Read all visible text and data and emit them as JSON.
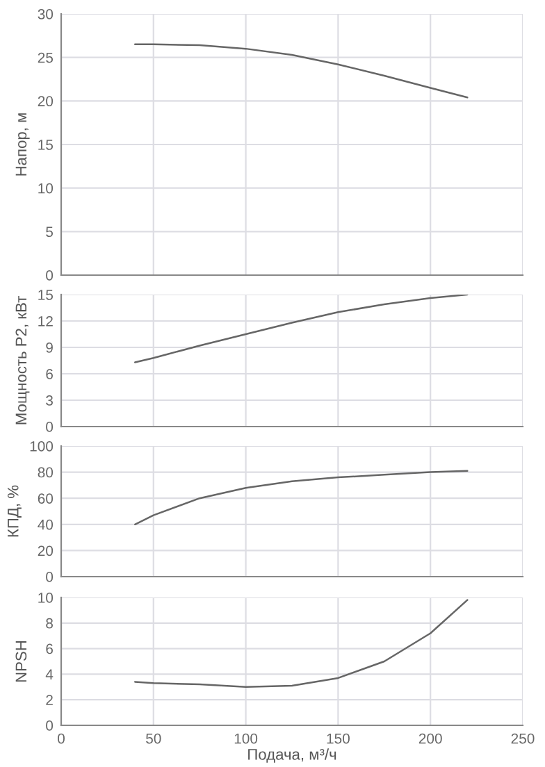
{
  "chart_data": [
    {
      "type": "line",
      "ylabel": "Напор, м",
      "x": [
        40,
        50,
        75,
        100,
        125,
        150,
        175,
        200,
        220
      ],
      "xlim": [
        0,
        250
      ],
      "xticks": [
        0,
        50,
        100,
        150,
        200,
        250
      ],
      "ylim": [
        0,
        30
      ],
      "yticks": [
        0,
        5,
        10,
        15,
        20,
        25,
        30
      ],
      "tick_labels": "y",
      "grid": true,
      "series": [
        {
          "color": "#666666",
          "values": [
            26.5,
            26.5,
            26.4,
            26.0,
            25.3,
            24.2,
            22.9,
            21.5,
            20.4
          ]
        }
      ]
    },
    {
      "type": "line",
      "ylabel": "Мощность P2, кВт",
      "x": [
        40,
        50,
        75,
        100,
        125,
        150,
        175,
        200,
        220
      ],
      "xlim": [
        0,
        250
      ],
      "xticks": [
        0,
        50,
        100,
        150,
        200,
        250
      ],
      "ylim": [
        0,
        15
      ],
      "yticks": [
        0,
        3,
        6,
        9,
        12,
        15
      ],
      "tick_labels": "y",
      "grid": true,
      "series": [
        {
          "color": "#666666",
          "values": [
            7.3,
            7.8,
            9.2,
            10.5,
            11.8,
            13.0,
            13.9,
            14.6,
            15.0
          ]
        }
      ]
    },
    {
      "type": "line",
      "ylabel": "КПД, %",
      "x": [
        40,
        50,
        75,
        100,
        125,
        150,
        175,
        200,
        220
      ],
      "xlim": [
        0,
        250
      ],
      "xticks": [
        0,
        50,
        100,
        150,
        200,
        250
      ],
      "ylim": [
        0,
        100
      ],
      "yticks": [
        0,
        20,
        40,
        60,
        80,
        100
      ],
      "tick_labels": "y",
      "grid": true,
      "series": [
        {
          "color": "#666666",
          "values": [
            40,
            47,
            60,
            68,
            73,
            76,
            78,
            80,
            81
          ]
        }
      ]
    },
    {
      "type": "line",
      "ylabel": "NPSH",
      "xlabel": "Подача, м³/ч",
      "x": [
        40,
        50,
        75,
        100,
        125,
        150,
        175,
        200,
        220
      ],
      "xlim": [
        0,
        250
      ],
      "xticks": [
        0,
        50,
        100,
        150,
        200,
        250
      ],
      "ylim": [
        0,
        10
      ],
      "yticks": [
        0,
        2,
        4,
        6,
        8,
        10
      ],
      "grid": true,
      "series": [
        {
          "color": "#666666",
          "values": [
            3.4,
            3.3,
            3.2,
            3.0,
            3.1,
            3.7,
            5.0,
            7.2,
            9.8
          ]
        }
      ]
    }
  ]
}
